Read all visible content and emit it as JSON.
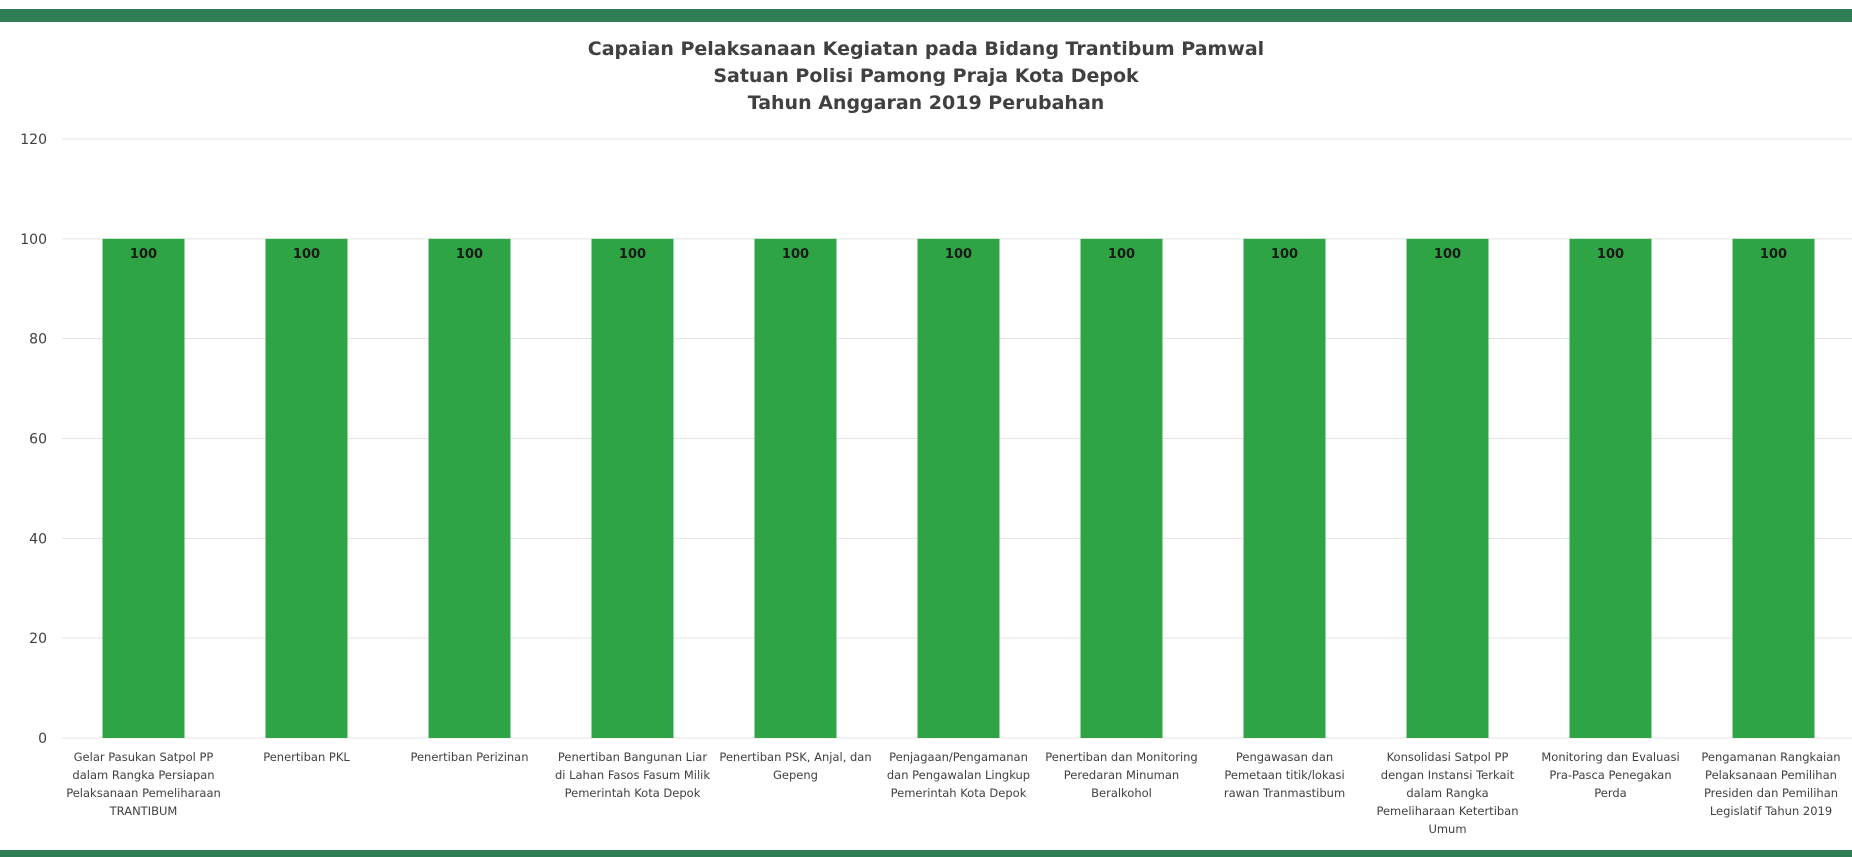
{
  "chart_data": {
    "type": "bar",
    "title": [
      "Capaian Pelaksanaan Kegiatan pada Bidang Trantibum Pamwal",
      "Satuan Polisi Pamong Praja Kota Depok",
      "Tahun Anggaran 2019 Perubahan"
    ],
    "categories": [
      "Gelar Pasukan Satpol PP dalam Rangka Persiapan Pelaksanaan Pemeliharaan TRANTIBUM",
      "Penertiban PKL",
      "Penertiban Perizinan",
      "Penertiban Bangunan Liar di Lahan Fasos Fasum Milik Pemerintah Kota Depok",
      "Penertiban PSK, Anjal, dan Gepeng",
      "Penjagaan/Pengamanan dan Pengawalan Lingkup Pemerintah Kota Depok",
      "Penertiban dan Monitoring Peredaran Minuman Beralkohol",
      "Pengawasan dan Pemetaan titik/lokasi rawan Tranmastibum",
      "Konsolidasi Satpol PP dengan Instansi Terkait dalam Rangka Pemeliharaan Ketertiban Umum",
      "Monitoring dan Evaluasi Pra-Pasca Penegakan Perda",
      "Pengamanan Rangkaian Pelaksanaan Pemilihan Presiden dan Pemilihan Legislatif Tahun 2019"
    ],
    "values": [
      100,
      100,
      100,
      100,
      100,
      100,
      100,
      100,
      100,
      100,
      100
    ],
    "data_labels": [
      "100",
      "100",
      "100",
      "100",
      "100",
      "100",
      "100",
      "100",
      "100",
      "100",
      "100"
    ],
    "ylim": [
      0,
      120
    ],
    "yticks": [
      "0",
      "20",
      "40",
      "60",
      "80",
      "100",
      "120"
    ],
    "grid": true,
    "legend": "none",
    "bar_color": "#2ea444",
    "frame_color": "#2f7d55"
  }
}
